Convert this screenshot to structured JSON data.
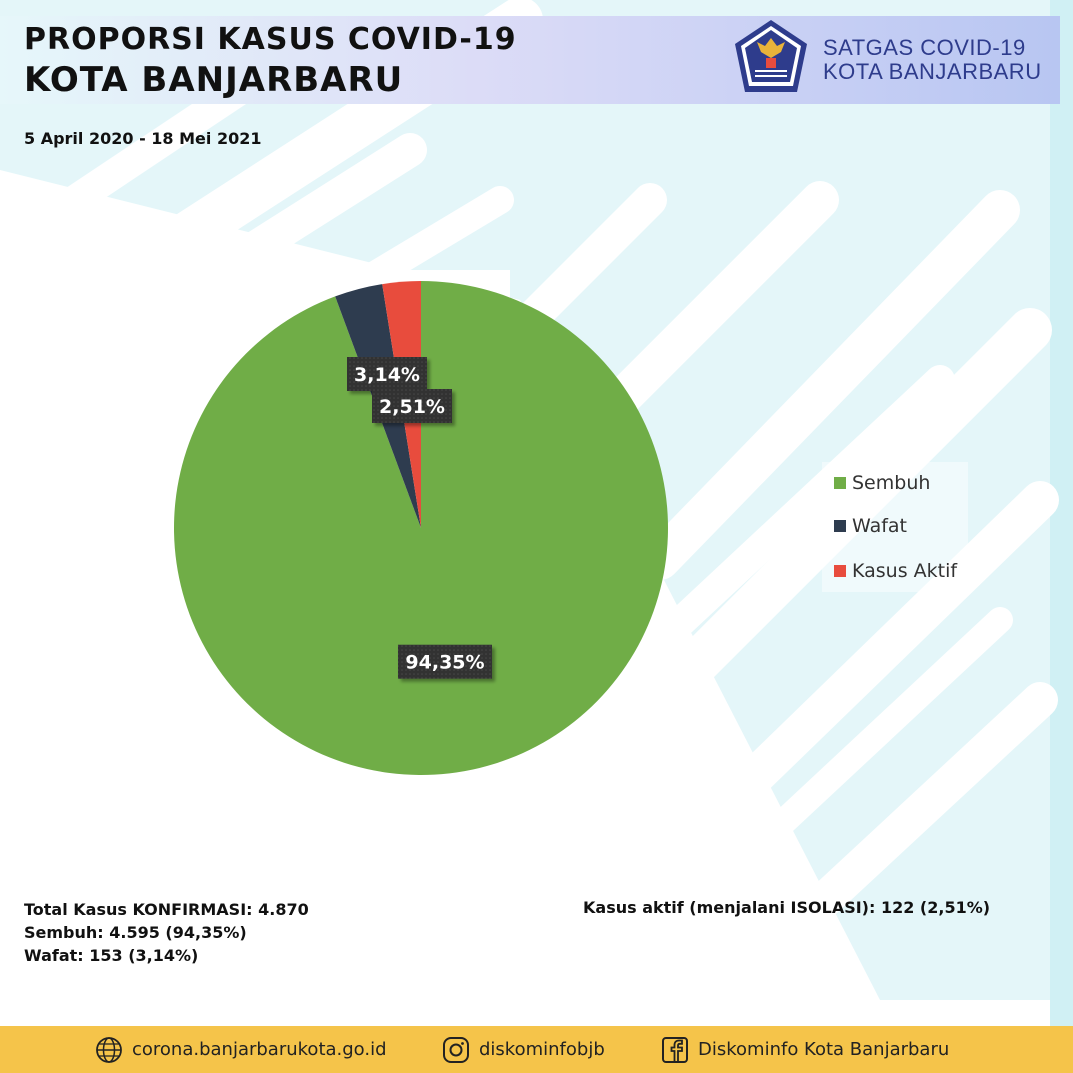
{
  "header": {
    "title_line1": "PROPORSI KASUS COVID-19",
    "title_line2": "KOTA BANJARBARU",
    "org_line1": "SATGAS COVID-19",
    "org_line2": "KOTA BANJARBARU",
    "emblem_icon": "garuda-emblem-icon"
  },
  "date_range": "5 April 2020 - 18 Mei 2021",
  "chart_data": {
    "type": "pie",
    "categories": [
      "Sembuh",
      "Wafat",
      "Kasus Aktif"
    ],
    "values": [
      94.35,
      3.14,
      2.51
    ],
    "labels": [
      "94,35%",
      "3,14%",
      "2,51%"
    ],
    "colors": [
      "#70ad47",
      "#2e3c4f",
      "#e84c3d"
    ],
    "legend_position": "right"
  },
  "summary": {
    "total": "Total Kasus KONFIRMASI: 4.870",
    "sembuh": "Sembuh: 4.595 (94,35%)",
    "wafat": "Wafat: 153 (3,14%)",
    "aktif": "Kasus aktif (menjalani ISOLASI): 122 (2,51%)"
  },
  "footer": {
    "website": "corona.banjarbarukota.go.id",
    "instagram": "diskominfobjb",
    "facebook": "Diskominfo Kota Banjarbaru",
    "background": "#f5c44a"
  }
}
